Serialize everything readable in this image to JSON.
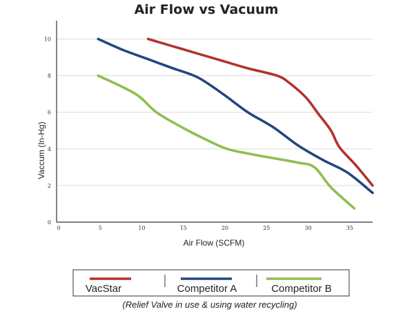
{
  "chart_data": {
    "type": "line",
    "title": "Air Flow vs Vacuum",
    "xlabel": "Air Flow (SCFM)",
    "ylabel": "Vaccum (In-Hg)",
    "xlim": [
      0,
      38
    ],
    "ylim": [
      0,
      11
    ],
    "xticks": [
      0,
      5,
      10,
      15,
      20,
      25,
      30,
      35
    ],
    "yticks": [
      0,
      2,
      4,
      6,
      8,
      10
    ],
    "grid": true,
    "legend_position": "bottom",
    "note": "(Relief Valve in use & using water recycling)",
    "series": [
      {
        "name": "VacStar",
        "color": "#b3312e",
        "x": [
          11,
          14,
          17,
          20,
          23,
          26.5,
          28,
          30,
          31.5,
          33,
          34,
          36,
          38
        ],
        "y": [
          10,
          9.6,
          9.2,
          8.8,
          8.4,
          8.0,
          7.6,
          6.8,
          5.9,
          5.0,
          4.1,
          3.1,
          2.0
        ]
      },
      {
        "name": "Competitor A",
        "color": "#23467d",
        "x": [
          5,
          8,
          11,
          14,
          17,
          20,
          23,
          26,
          29,
          32,
          35,
          38
        ],
        "y": [
          10,
          9.4,
          8.9,
          8.4,
          7.9,
          7.0,
          6.0,
          5.2,
          4.2,
          3.4,
          2.7,
          1.6
        ]
      },
      {
        "name": "Competitor B",
        "color": "#8fbe4f",
        "x": [
          5,
          9.5,
          12,
          15,
          18,
          20.5,
          23,
          26,
          29,
          31,
          33,
          35.8
        ],
        "y": [
          8,
          7,
          6,
          5.2,
          4.5,
          4.0,
          3.75,
          3.5,
          3.25,
          3.0,
          1.9,
          0.75
        ]
      }
    ]
  }
}
